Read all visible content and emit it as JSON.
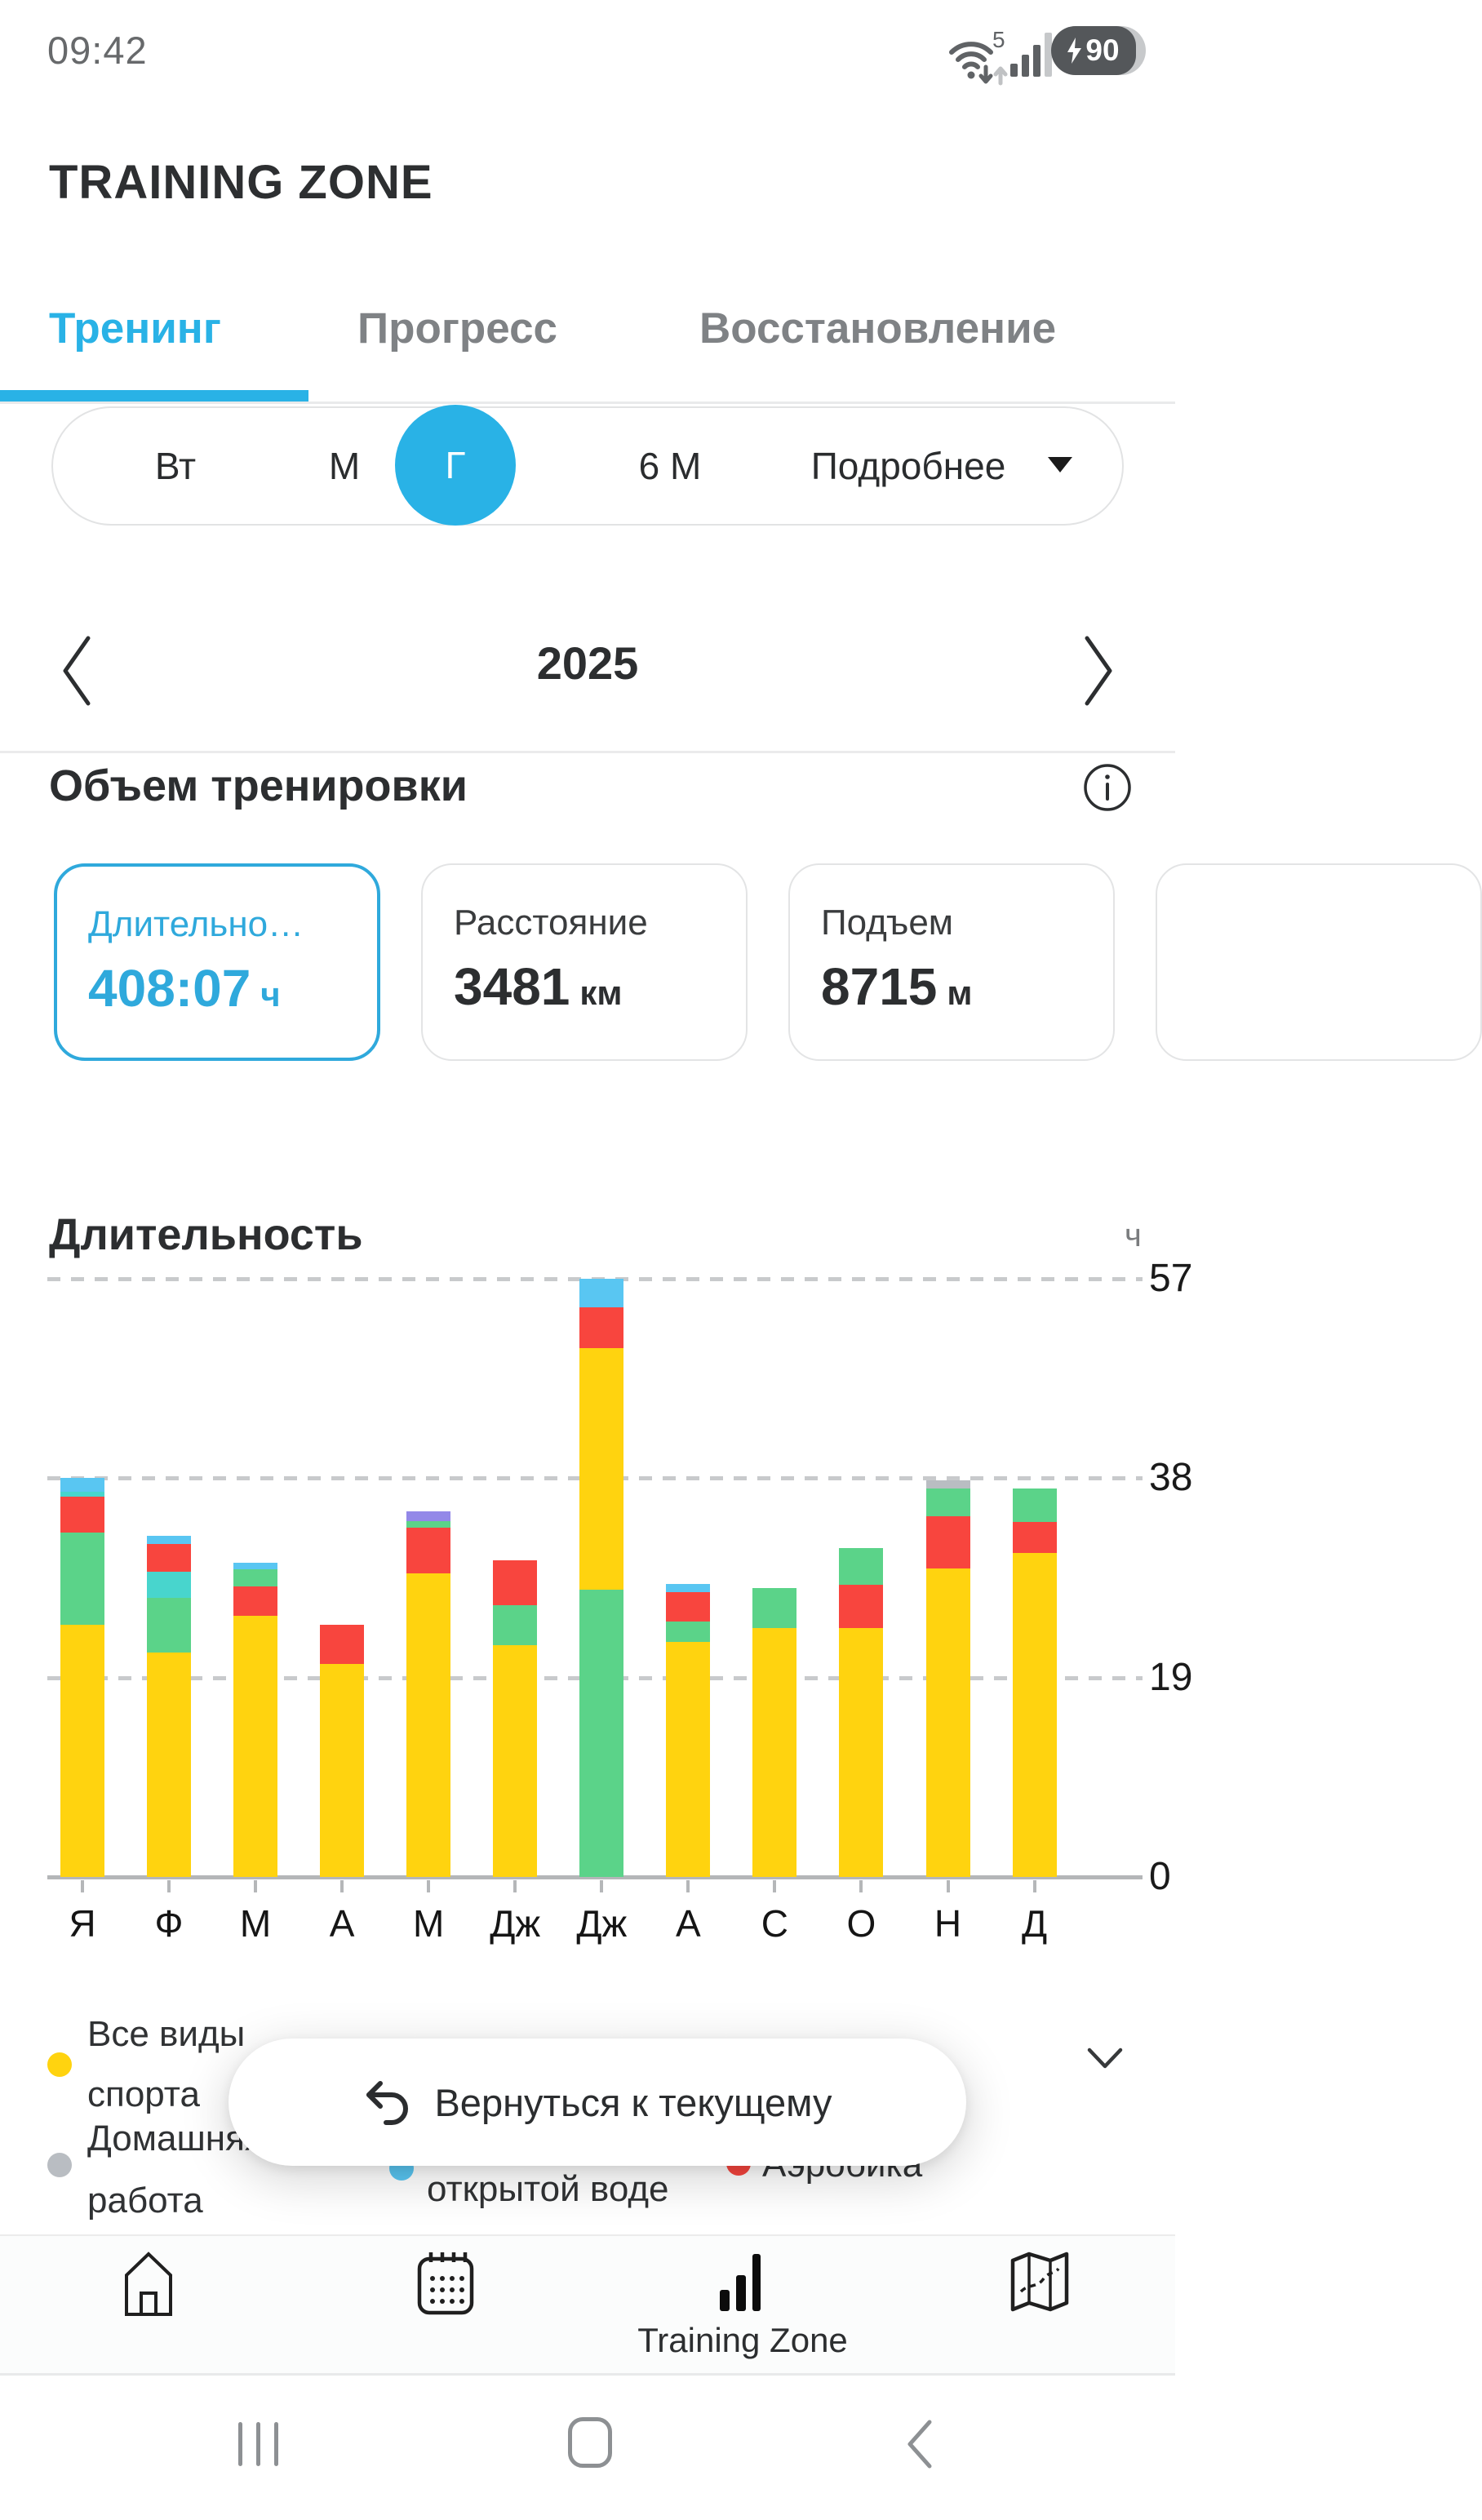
{
  "status_bar": {
    "time": "09:42",
    "wifi_label": "5",
    "battery_percent": "90"
  },
  "header": {
    "title": "TRAINING ZONE"
  },
  "tabs": {
    "items": [
      {
        "label": "Тренинг",
        "active": true
      },
      {
        "label": "Прогресс",
        "active": false
      },
      {
        "label": "Восстановление",
        "active": false
      }
    ]
  },
  "range_selector": {
    "options": {
      "week": "Вт",
      "month": "М",
      "year": "Г",
      "six_months": "6 М"
    },
    "selected": "Г",
    "more_label": "Подробнее"
  },
  "year_nav": {
    "year": "2025"
  },
  "volume_section": {
    "title": "Объем тренировки"
  },
  "summary_cards": [
    {
      "label": "Длительно…",
      "value": "408:07",
      "unit": "ч",
      "selected": true
    },
    {
      "label": "Расстояние",
      "value": "3481",
      "unit": "км",
      "selected": false
    },
    {
      "label": "Подъем",
      "value": "8715",
      "unit": "м",
      "selected": false
    }
  ],
  "duration_section": {
    "title": "Длительность",
    "unit": "ч"
  },
  "chart_data": {
    "type": "bar",
    "variant": "stacked",
    "title": "Длительность",
    "ylabel": "ч",
    "y_ticks": [
      0,
      19,
      38,
      57
    ],
    "ylim": [
      0,
      60
    ],
    "grid": "horizontal-dashed",
    "legend_position": "below",
    "categories": [
      "Я",
      "Ф",
      "М",
      "А",
      "М",
      "Дж",
      "Дж",
      "А",
      "С",
      "О",
      "Н",
      "Д"
    ],
    "series_colors": {
      "yellow": "#FFD30F",
      "green": "#5BD389",
      "red": "#F8453E",
      "blue": "#59C6F2",
      "cyan": "#48D5CD",
      "purple": "#9388E8",
      "gray": "#B9BDC2"
    },
    "bars": [
      {
        "month": "Я",
        "segments": [
          {
            "c": "yellow",
            "v": 24.0
          },
          {
            "c": "green",
            "v": 8.8
          },
          {
            "c": "red",
            "v": 3.4
          },
          {
            "c": "cyan",
            "v": 0.5
          },
          {
            "c": "blue",
            "v": 1.3
          }
        ]
      },
      {
        "month": "Ф",
        "segments": [
          {
            "c": "yellow",
            "v": 21.4
          },
          {
            "c": "green",
            "v": 5.2
          },
          {
            "c": "cyan",
            "v": 2.5
          },
          {
            "c": "red",
            "v": 2.6
          },
          {
            "c": "blue",
            "v": 0.8
          }
        ]
      },
      {
        "month": "М",
        "segments": [
          {
            "c": "yellow",
            "v": 24.9
          },
          {
            "c": "red",
            "v": 2.8
          },
          {
            "c": "green",
            "v": 1.6
          },
          {
            "c": "blue",
            "v": 0.6
          }
        ]
      },
      {
        "month": "А",
        "segments": [
          {
            "c": "yellow",
            "v": 20.3
          },
          {
            "c": "red",
            "v": 3.7
          }
        ]
      },
      {
        "month": "М",
        "segments": [
          {
            "c": "yellow",
            "v": 28.9
          },
          {
            "c": "red",
            "v": 4.4
          },
          {
            "c": "green",
            "v": 0.6
          },
          {
            "c": "purple",
            "v": 0.9
          }
        ]
      },
      {
        "month": "Дж",
        "segments": [
          {
            "c": "yellow",
            "v": 22.1
          },
          {
            "c": "green",
            "v": 3.8
          },
          {
            "c": "red",
            "v": 4.3
          }
        ]
      },
      {
        "month": "Дж",
        "segments": [
          {
            "c": "green",
            "v": 27.4
          },
          {
            "c": "yellow",
            "v": 23.0
          },
          {
            "c": "red",
            "v": 3.9
          },
          {
            "c": "blue",
            "v": 2.7
          }
        ]
      },
      {
        "month": "А",
        "segments": [
          {
            "c": "yellow",
            "v": 22.4
          },
          {
            "c": "green",
            "v": 1.9
          },
          {
            "c": "red",
            "v": 2.8
          },
          {
            "c": "blue",
            "v": 0.8
          }
        ]
      },
      {
        "month": "С",
        "segments": [
          {
            "c": "yellow",
            "v": 23.7
          },
          {
            "c": "green",
            "v": 3.8
          }
        ]
      },
      {
        "month": "О",
        "segments": [
          {
            "c": "yellow",
            "v": 23.7
          },
          {
            "c": "red",
            "v": 4.1
          },
          {
            "c": "green",
            "v": 3.5
          }
        ]
      },
      {
        "month": "Н",
        "segments": [
          {
            "c": "yellow",
            "v": 29.4
          },
          {
            "c": "red",
            "v": 5.0
          },
          {
            "c": "green",
            "v": 2.6
          },
          {
            "c": "gray",
            "v": 0.8
          }
        ]
      },
      {
        "month": "Д",
        "segments": [
          {
            "c": "yellow",
            "v": 30.9
          },
          {
            "c": "red",
            "v": 2.9
          },
          {
            "c": "green",
            "v": 3.2
          }
        ]
      }
    ]
  },
  "legend": {
    "items": [
      {
        "label": "Все виды спорта",
        "color_key": "yellow",
        "lines": [
          "Все виды",
          "спорта"
        ]
      },
      {
        "label": "Домашняя работа",
        "color_key": "gray",
        "lines": [
          "Домашняя",
          "работа"
        ]
      },
      {
        "label": "открытой воде",
        "color_key": "blue",
        "lines": [
          "открытой воде",
          ""
        ]
      },
      {
        "label": "Аэробика",
        "color_key": "red",
        "lines": [
          "Аэробика",
          ""
        ]
      }
    ]
  },
  "float_button": {
    "label": "Вернуться к текущему"
  },
  "bottom_nav": {
    "active_label": "Training Zone"
  },
  "colors": {
    "accent": "#29B2E6",
    "card_accent": "#2FA9DC",
    "inactive_tab": "#7F8285",
    "grid": "#C8CACC",
    "axis": "#B4B6B8"
  }
}
